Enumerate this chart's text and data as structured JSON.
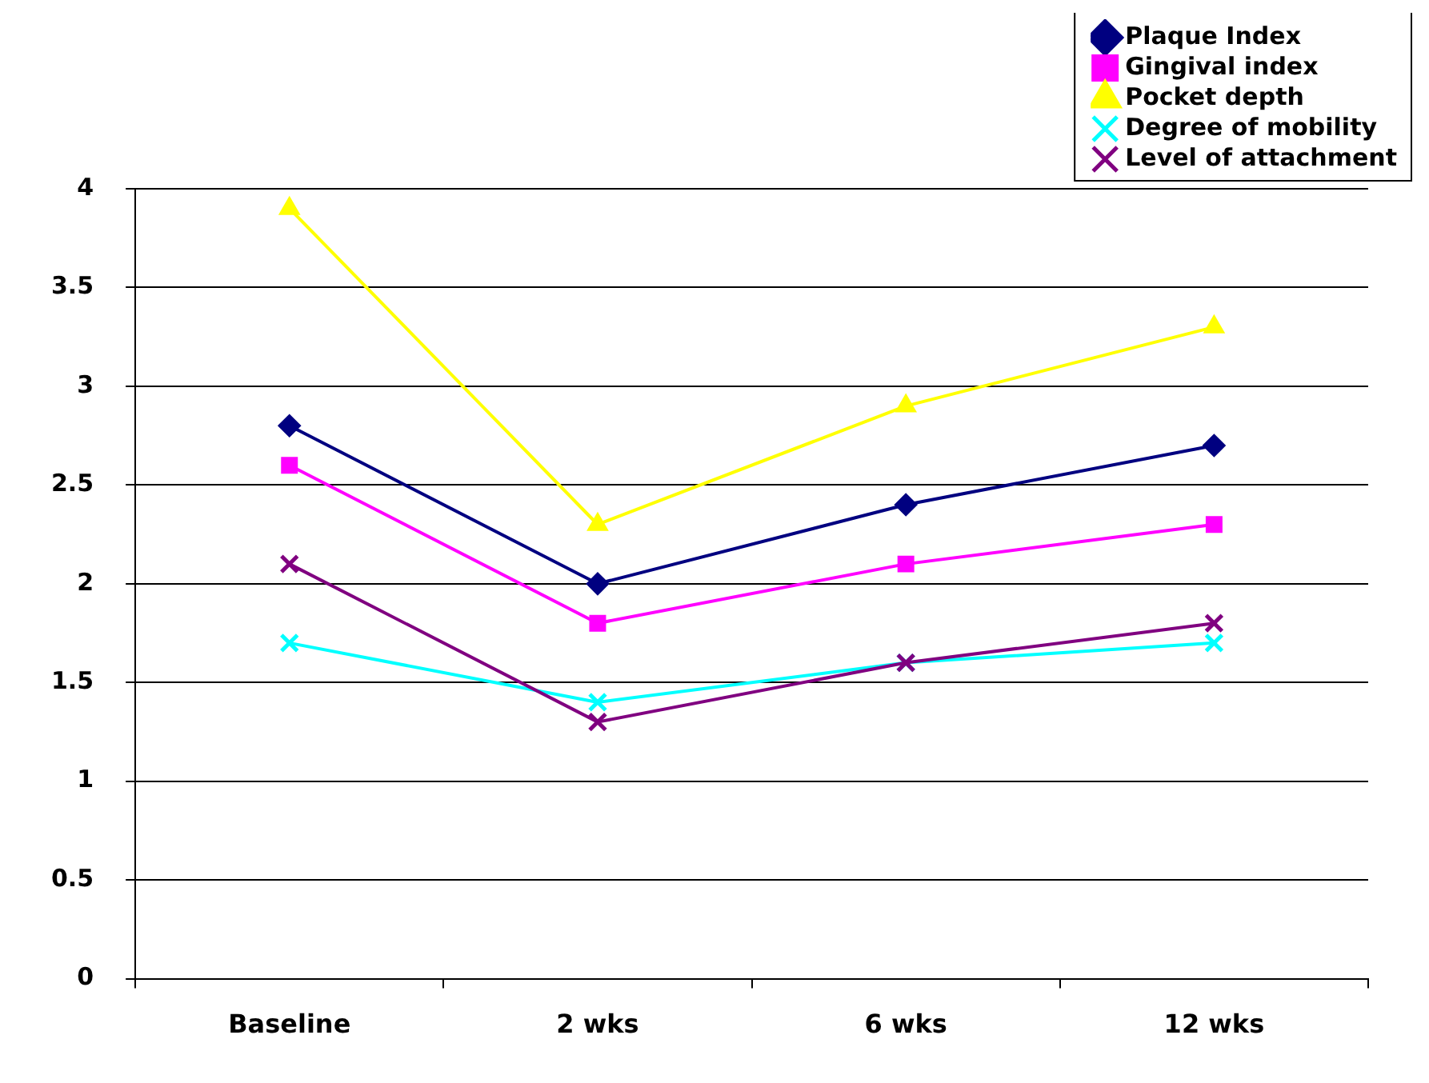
{
  "chart_data": {
    "type": "line",
    "categories": [
      "Baseline",
      "2 wks",
      "6 wks",
      "12 wks"
    ],
    "series": [
      {
        "name": "Plaque Index",
        "color": "#000080",
        "marker": "diamond",
        "values": [
          2.8,
          2.0,
          2.4,
          2.7
        ]
      },
      {
        "name": "Gingival index",
        "color": "#ff00ff",
        "marker": "square",
        "values": [
          2.6,
          1.8,
          2.1,
          2.3
        ]
      },
      {
        "name": "Pocket depth",
        "color": "#ffff00",
        "marker": "triangle",
        "values": [
          3.9,
          2.3,
          2.9,
          3.3
        ]
      },
      {
        "name": "Degree of mobility",
        "color": "#00ffff",
        "marker": "cross",
        "values": [
          1.7,
          1.4,
          1.6,
          1.7
        ]
      },
      {
        "name": "Level of attachment",
        "color": "#800080",
        "marker": "cross",
        "values": [
          2.1,
          1.3,
          1.6,
          1.8
        ]
      }
    ],
    "ylim": [
      0,
      4
    ],
    "yticks": [
      0,
      0.5,
      1,
      1.5,
      2,
      2.5,
      3,
      3.5,
      4
    ],
    "grid": "y",
    "legend": "top right",
    "line_style": "solid"
  }
}
